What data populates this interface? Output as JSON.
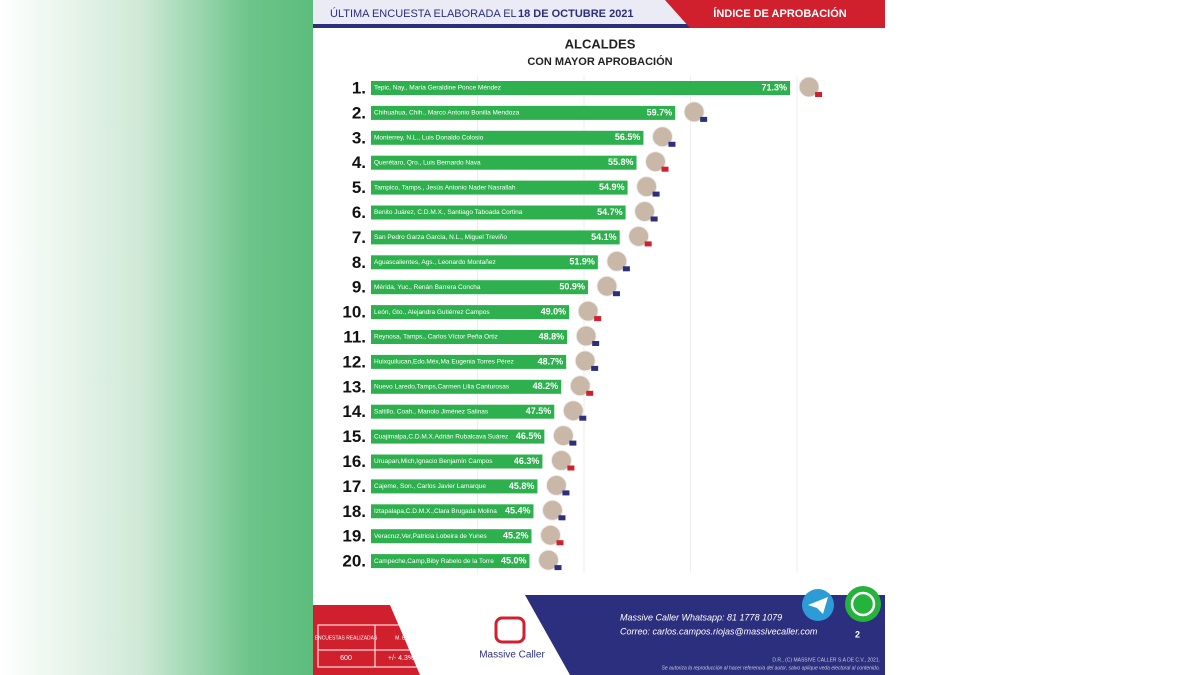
{
  "header": {
    "left": "ÚLTIMA ENCUESTA ELABORADA EL",
    "date": "18 DE OCTUBRE 2021",
    "right": "ÍNDICE DE APROBACIÓN"
  },
  "chart_data": {
    "type": "bar",
    "title": "ALCALDES",
    "subtitle": "CON MAYOR APROBACIÓN",
    "color": "#2fb04f",
    "ranks": [
      "1.",
      "2.",
      "3.",
      "4.",
      "5.",
      "6.",
      "7.",
      "8.",
      "9.",
      "10.",
      "11.",
      "12.",
      "13.",
      "14.",
      "15.",
      "16.",
      "17.",
      "18.",
      "19.",
      "20."
    ],
    "categories": [
      "Tepic, Nay., María Geraldine Ponce Méndez",
      "Chihuahua, Chih., Marco Antonio Bonilla Mendoza",
      "Monterrey, N.L., Luis Donaldo Colosio",
      "Querétaro, Qro., Luis Bernardo Nava",
      "Tampico, Tamps., Jesús Antonio Nader Nasrallah",
      "Benito Juárez, C.D.M.X., Santiago Taboada Cortina",
      "San Pedro Garza García, N.L., Miguel Treviño",
      "Aguascalientes, Ags., Leonardo Montañez",
      "Mérida, Yuc., Renán Barrera Concha",
      "León, Gto., Alejandra Gutiérrez Campos",
      "Reynosa, Tamps., Carlos Víctor Peña Ortiz",
      "Huixquilucan,Edo.Méx,Ma Eugenia Torres Pérez",
      "Nuevo Laredo,Tamps,Carmen Lilia Canturosas",
      "Saltillo, Coah., Manolo Jiménez Salinas",
      "Cuajimalpa,C.D.M.X.Adrián Rubalcava Suárez",
      "Uruapan,Mich,Ignacio Benjamín Campos",
      "Cajeme, Son., Carlos Javier Lamarque",
      "Iztapalapa,C.D.M.X.,Clara Brugada Molina",
      "Veracruz,Ver,Patricia Lobeira de Yunes",
      "Campeche,Camp,Biby Rabelo de la Torre"
    ],
    "values": [
      71.3,
      59.7,
      56.5,
      55.8,
      54.9,
      54.7,
      54.1,
      51.9,
      50.9,
      49.0,
      48.8,
      48.7,
      48.2,
      47.5,
      46.5,
      46.3,
      45.8,
      45.4,
      45.2,
      45.0
    ],
    "value_labels": [
      "71.3%",
      "59.7%",
      "56.5%",
      "55.8%",
      "54.9%",
      "54.7%",
      "54.1%",
      "51.9%",
      "50.9%",
      "49.0%",
      "48.8%",
      "48.7%",
      "48.2%",
      "47.5%",
      "46.5%",
      "46.3%",
      "45.8%",
      "45.4%",
      "45.2%",
      "45.0%"
    ],
    "xlim": [
      29,
      72
    ]
  },
  "footer": {
    "surveys_label": "ENCUESTAS REALIZADAS",
    "surveys": "600",
    "me_label": "M. E.",
    "me": "+/- 4.3%",
    "logo": "Massive Caller",
    "whatsapp": "Massive Caller Whatsapp:  81 1778 1079",
    "email": "Correo: carlos.campos.riojas@massivecaller.com",
    "page": "2",
    "copyright": "D.R., (C) MASSIVE CALLER S.A DE C.V., 2021.",
    "notice": "Se autoriza la reproducción al hacer referencia del autor, salvo aplique veda electoral al contenido."
  }
}
